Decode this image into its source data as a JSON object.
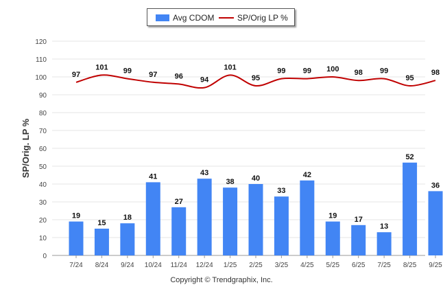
{
  "chart_data": {
    "type": "bar",
    "ylabel": "SP/Orig. LP %",
    "ylim": [
      0,
      120
    ],
    "yticks": [
      0,
      10,
      20,
      30,
      40,
      50,
      60,
      70,
      80,
      90,
      100,
      110,
      120
    ],
    "grid": true,
    "categories": [
      "7/24",
      "8/24",
      "9/24",
      "10/24",
      "11/24",
      "12/24",
      "1/25",
      "2/25",
      "3/25",
      "4/25",
      "5/25",
      "6/25",
      "7/25",
      "8/25",
      "9/25"
    ],
    "series": [
      {
        "name": "Avg CDOM",
        "type": "bar",
        "color": "#4285f4",
        "values": [
          19,
          15,
          18,
          41,
          27,
          43,
          38,
          40,
          33,
          42,
          19,
          17,
          13,
          52,
          36
        ]
      },
      {
        "name": "SP/Orig LP %",
        "type": "line",
        "color": "#c00000",
        "values": [
          97,
          101,
          99,
          97,
          96,
          94,
          101,
          95,
          99,
          99,
          100,
          98,
          99,
          95,
          98
        ]
      }
    ],
    "legend": {
      "position": "top-center",
      "items": [
        "Avg CDOM",
        "SP/Orig LP %"
      ]
    }
  },
  "footer": {
    "copyright": "Copyright © Trendgraphix, Inc."
  }
}
